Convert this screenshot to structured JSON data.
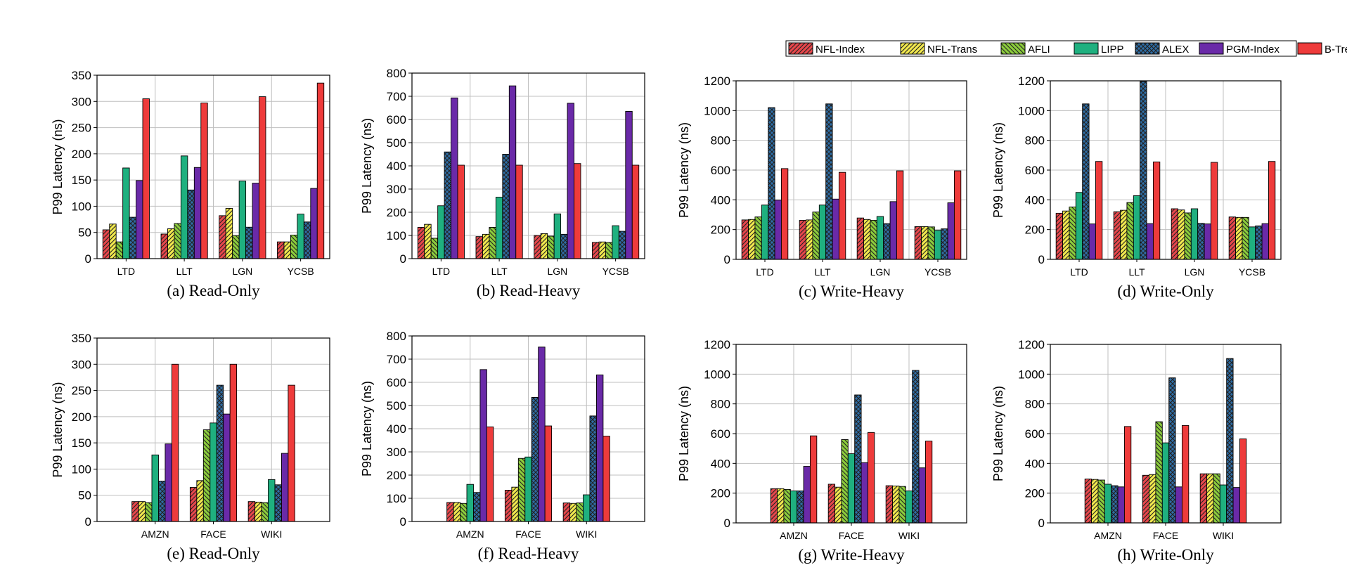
{
  "legend": {
    "entries": [
      {
        "name": "NFL-Index",
        "color": "#e8474c",
        "pattern": "diag-right"
      },
      {
        "name": "NFL-Trans",
        "color": "#f2e94e",
        "pattern": "diag-right"
      },
      {
        "name": "AFLI",
        "color": "#8ccd3c",
        "pattern": "diag-left"
      },
      {
        "name": "LIPP",
        "color": "#1fb07f",
        "pattern": "solid"
      },
      {
        "name": "ALEX",
        "color": "#2f6ea6",
        "pattern": "cross"
      },
      {
        "name": "PGM-Index",
        "color": "#6a2aa8",
        "pattern": "solid"
      },
      {
        "name": "B-Tree",
        "color": "#ee3b3b",
        "pattern": "solid"
      }
    ]
  },
  "chart_data": [
    {
      "type": "bar",
      "caption": "(a) Read-Only",
      "ylabel": "P99 Latency (ns)",
      "ylim": [
        0,
        350
      ],
      "yticks": [
        0,
        50,
        100,
        150,
        200,
        250,
        300,
        350
      ],
      "grid": true,
      "categories": [
        "LTD",
        "LLT",
        "LGN",
        "YCSB"
      ],
      "series": [
        {
          "name": "NFL-Index",
          "values": [
            55,
            47,
            82,
            32
          ]
        },
        {
          "name": "NFL-Trans",
          "values": [
            66,
            57,
            96,
            32
          ]
        },
        {
          "name": "AFLI",
          "values": [
            32,
            67,
            44,
            45
          ]
        },
        {
          "name": "LIPP",
          "values": [
            173,
            196,
            148,
            85
          ]
        },
        {
          "name": "ALEX",
          "values": [
            79,
            131,
            60,
            70
          ]
        },
        {
          "name": "PGM-Index",
          "values": [
            149,
            174,
            144,
            134
          ]
        },
        {
          "name": "B-Tree",
          "values": [
            305,
            297,
            309,
            335
          ]
        }
      ]
    },
    {
      "type": "bar",
      "caption": "(b) Read-Heavy",
      "ylabel": "P99 Latency (ns)",
      "ylim": [
        0,
        800
      ],
      "yticks": [
        0,
        100,
        200,
        300,
        400,
        500,
        600,
        700,
        800
      ],
      "grid": true,
      "categories": [
        "LTD",
        "LLT",
        "LGN",
        "YCSB"
      ],
      "series": [
        {
          "name": "NFL-Index",
          "values": [
            135,
            95,
            100,
            70
          ]
        },
        {
          "name": "NFL-Trans",
          "values": [
            148,
            105,
            108,
            72
          ]
        },
        {
          "name": "AFLI",
          "values": [
            88,
            135,
            97,
            70
          ]
        },
        {
          "name": "LIPP",
          "values": [
            228,
            265,
            193,
            142
          ]
        },
        {
          "name": "ALEX",
          "values": [
            460,
            450,
            105,
            118
          ]
        },
        {
          "name": "PGM-Index",
          "values": [
            693,
            745,
            670,
            635
          ]
        },
        {
          "name": "B-Tree",
          "values": [
            403,
            403,
            410,
            403
          ]
        }
      ]
    },
    {
      "type": "bar",
      "caption": "(c) Write-Heavy",
      "ylabel": "P99 Latency (ns)",
      "ylim": [
        0,
        1200
      ],
      "yticks": [
        0,
        200,
        400,
        600,
        800,
        1000,
        1200
      ],
      "grid": true,
      "categories": [
        "LTD",
        "LLT",
        "LGN",
        "YCSB"
      ],
      "series": [
        {
          "name": "NFL-Index",
          "values": [
            265,
            262,
            278,
            220
          ]
        },
        {
          "name": "NFL-Trans",
          "values": [
            268,
            265,
            268,
            220
          ]
        },
        {
          "name": "AFLI",
          "values": [
            285,
            318,
            262,
            218
          ]
        },
        {
          "name": "LIPP",
          "values": [
            365,
            365,
            288,
            195
          ]
        },
        {
          "name": "ALEX",
          "values": [
            1020,
            1045,
            240,
            205
          ]
        },
        {
          "name": "PGM-Index",
          "values": [
            398,
            405,
            388,
            380
          ]
        },
        {
          "name": "B-Tree",
          "values": [
            610,
            585,
            595,
            595
          ]
        }
      ]
    },
    {
      "type": "bar",
      "caption": "(d) Write-Only",
      "ylabel": "P99 Latency (ns)",
      "ylim": [
        0,
        1200
      ],
      "yticks": [
        0,
        200,
        400,
        600,
        800,
        1000,
        1200
      ],
      "grid": true,
      "categories": [
        "LTD",
        "LLT",
        "LGN",
        "YCSB"
      ],
      "series": [
        {
          "name": "NFL-Index",
          "values": [
            310,
            320,
            340,
            285
          ]
        },
        {
          "name": "NFL-Trans",
          "values": [
            325,
            330,
            332,
            282
          ]
        },
        {
          "name": "AFLI",
          "values": [
            352,
            382,
            312,
            282
          ]
        },
        {
          "name": "LIPP",
          "values": [
            450,
            428,
            340,
            218
          ]
        },
        {
          "name": "ALEX",
          "values": [
            1045,
            1195,
            242,
            225
          ]
        },
        {
          "name": "PGM-Index",
          "values": [
            238,
            240,
            238,
            240
          ]
        },
        {
          "name": "B-Tree",
          "values": [
            658,
            655,
            652,
            658
          ]
        }
      ]
    },
    {
      "type": "bar",
      "caption": "(e) Read-Only",
      "ylabel": "P99 Latency (ns)",
      "ylim": [
        0,
        350
      ],
      "yticks": [
        0,
        50,
        100,
        150,
        200,
        250,
        300,
        350
      ],
      "grid": true,
      "categories": [
        "AMZN",
        "FACE",
        "WIKI"
      ],
      "series": [
        {
          "name": "NFL-Index",
          "values": [
            38,
            65,
            38
          ]
        },
        {
          "name": "NFL-Trans",
          "values": [
            38,
            78,
            37
          ]
        },
        {
          "name": "AFLI",
          "values": [
            36,
            175,
            36
          ]
        },
        {
          "name": "LIPP",
          "values": [
            127,
            188,
            80
          ]
        },
        {
          "name": "ALEX",
          "values": [
            77,
            260,
            70
          ]
        },
        {
          "name": "PGM-Index",
          "values": [
            148,
            205,
            130
          ]
        },
        {
          "name": "B-Tree",
          "values": [
            300,
            300,
            260
          ]
        }
      ]
    },
    {
      "type": "bar",
      "caption": "(f) Read-Heavy",
      "ylabel": "P99 Latency (ns)",
      "ylim": [
        0,
        800
      ],
      "yticks": [
        0,
        100,
        200,
        300,
        400,
        500,
        600,
        700,
        800
      ],
      "grid": true,
      "categories": [
        "AMZN",
        "FACE",
        "WIKI"
      ],
      "series": [
        {
          "name": "NFL-Index",
          "values": [
            82,
            135,
            80
          ]
        },
        {
          "name": "NFL-Trans",
          "values": [
            82,
            148,
            78
          ]
        },
        {
          "name": "AFLI",
          "values": [
            78,
            272,
            80
          ]
        },
        {
          "name": "LIPP",
          "values": [
            160,
            278,
            115
          ]
        },
        {
          "name": "ALEX",
          "values": [
            125,
            535,
            455
          ]
        },
        {
          "name": "PGM-Index",
          "values": [
            655,
            752,
            632
          ]
        },
        {
          "name": "B-Tree",
          "values": [
            408,
            412,
            368
          ]
        }
      ]
    },
    {
      "type": "bar",
      "caption": "(g) Write-Heavy",
      "ylabel": "P99 Latency (ns)",
      "ylim": [
        0,
        1200
      ],
      "yticks": [
        0,
        200,
        400,
        600,
        800,
        1000,
        1200
      ],
      "grid": true,
      "categories": [
        "AMZN",
        "FACE",
        "WIKI"
      ],
      "series": [
        {
          "name": "NFL-Index",
          "values": [
            230,
            260,
            250
          ]
        },
        {
          "name": "NFL-Trans",
          "values": [
            230,
            240,
            248
          ]
        },
        {
          "name": "AFLI",
          "values": [
            225,
            560,
            245
          ]
        },
        {
          "name": "LIPP",
          "values": [
            215,
            465,
            215
          ]
        },
        {
          "name": "ALEX",
          "values": [
            215,
            860,
            1025
          ]
        },
        {
          "name": "PGM-Index",
          "values": [
            380,
            405,
            370
          ]
        },
        {
          "name": "B-Tree",
          "values": [
            585,
            608,
            550
          ]
        }
      ]
    },
    {
      "type": "bar",
      "caption": "(h) Write-Only",
      "ylabel": "P99 Latency (ns)",
      "ylim": [
        0,
        1200
      ],
      "yticks": [
        0,
        200,
        400,
        600,
        800,
        1000,
        1200
      ],
      "grid": true,
      "categories": [
        "AMZN",
        "FACE",
        "WIKI"
      ],
      "series": [
        {
          "name": "NFL-Index",
          "values": [
            295,
            320,
            330
          ]
        },
        {
          "name": "NFL-Trans",
          "values": [
            292,
            325,
            330
          ]
        },
        {
          "name": "AFLI",
          "values": [
            288,
            680,
            330
          ]
        },
        {
          "name": "LIPP",
          "values": [
            260,
            538,
            255
          ]
        },
        {
          "name": "ALEX",
          "values": [
            250,
            975,
            1105
          ]
        },
        {
          "name": "PGM-Index",
          "values": [
            242,
            242,
            238
          ]
        },
        {
          "name": "B-Tree",
          "values": [
            648,
            655,
            565
          ]
        }
      ]
    }
  ]
}
